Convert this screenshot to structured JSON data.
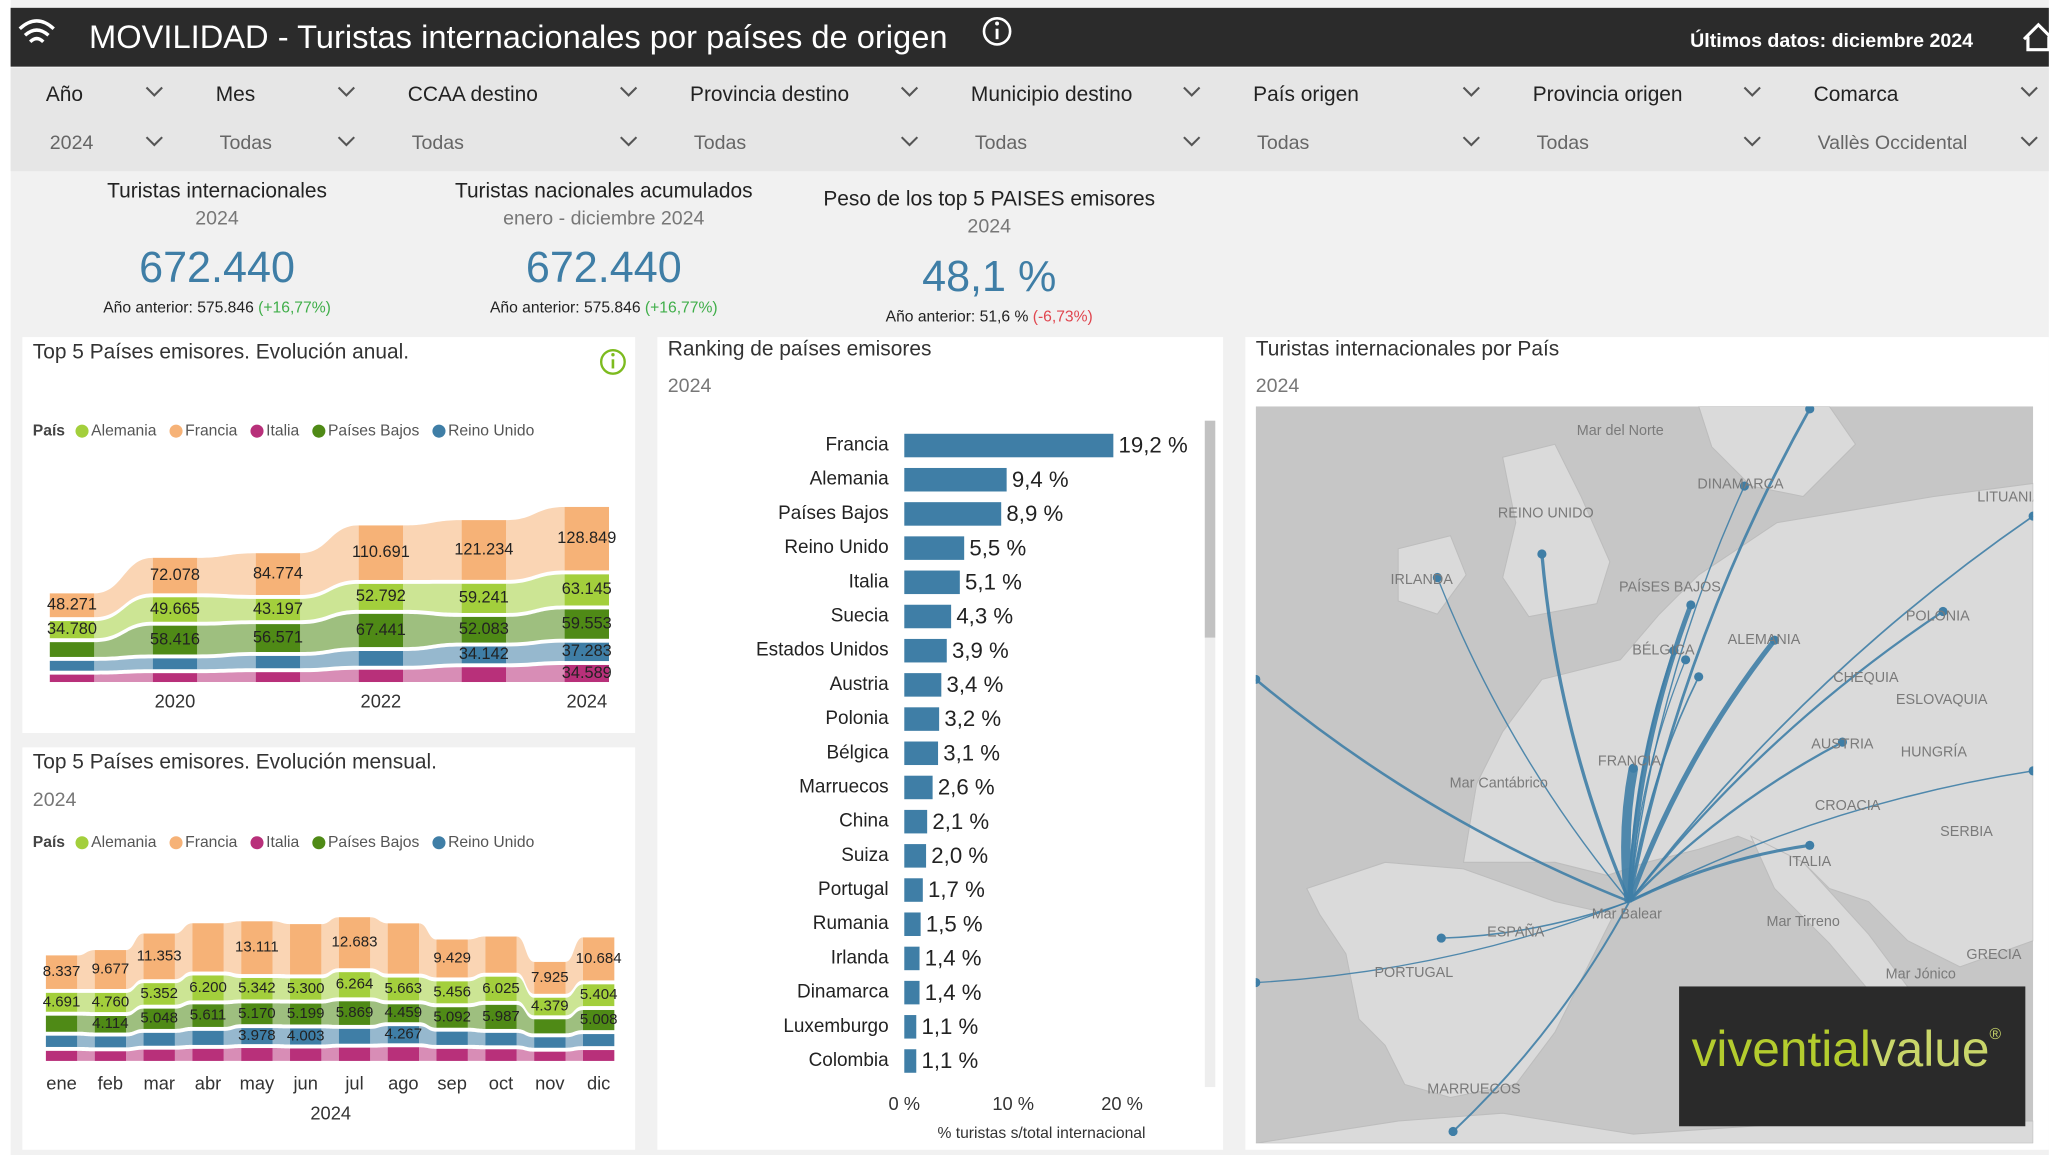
{
  "header": {
    "title": "MOVILIDAD - Turistas internacionales por países de origen",
    "last_data": "Últimos datos: diciembre 2024"
  },
  "filters": [
    {
      "label": "Año",
      "value": "2024"
    },
    {
      "label": "Mes",
      "value": "Todas"
    },
    {
      "label": "CCAA destino",
      "value": "Todas"
    },
    {
      "label": "Provincia destino",
      "value": "Todas"
    },
    {
      "label": "Municipio destino",
      "value": "Todas"
    },
    {
      "label": "País origen",
      "value": "Todas"
    },
    {
      "label": "Provincia origen",
      "value": "Todas"
    },
    {
      "label": "Comarca",
      "value": "Vallès Occidental"
    }
  ],
  "kpis": [
    {
      "title": "Turistas internacionales",
      "subtitle": "2024",
      "value": "672.440",
      "previous": "Año anterior: 575.846",
      "change": "(+16,77%)"
    },
    {
      "title": "Turistas nacionales acumulados",
      "subtitle": "enero - diciembre 2024",
      "value": "672.440",
      "previous": "Año anterior: 575.846",
      "change": "(+16,77%)"
    },
    {
      "title": "Peso de los top 5 PAISES emisores",
      "subtitle": "2024",
      "value": "48,1 %",
      "previous": "Año anterior: 51,6 %",
      "change": "(-6,73%)"
    }
  ],
  "chart_data": [
    {
      "type": "ribbon",
      "title": "Top 5 Países emisores. Evolución anual.",
      "legend_title": "País",
      "categories": [
        null,
        "2020",
        null,
        "2022",
        null,
        "2024"
      ],
      "series": [
        {
          "name": "Alemania",
          "color": "#a3cf3c",
          "values": [
            34780,
            49665,
            43197,
            52792,
            59241,
            63145
          ],
          "value_labels": [
            "34.780",
            "49.665",
            "43.197",
            "52.792",
            "59.241",
            "63.145"
          ]
        },
        {
          "name": "Francia",
          "color": "#f6b277",
          "values": [
            48271,
            72078,
            84774,
            110691,
            121234,
            128849
          ],
          "value_labels": [
            "48.271",
            "72.078",
            "84.774",
            "110.691",
            "121.234",
            "128.849"
          ]
        },
        {
          "name": "Italia",
          "color": "#b8307a",
          "values": [
            15000,
            18000,
            20000,
            25000,
            30000,
            34589
          ],
          "value_labels": [
            null,
            null,
            null,
            null,
            null,
            "34.589"
          ]
        },
        {
          "name": "Países Bajos",
          "color": "#4f8a16",
          "values": [
            30000,
            58416,
            56571,
            67441,
            52083,
            59553
          ],
          "value_labels": [
            null,
            "58.416",
            "56.571",
            "67.441",
            "52.083",
            "59.553"
          ]
        },
        {
          "name": "Reino Unido",
          "color": "#3f7ea6",
          "values": [
            20000,
            22000,
            25000,
            30000,
            34142,
            37283
          ],
          "value_labels": [
            null,
            null,
            null,
            null,
            "34.142",
            "37.283"
          ]
        }
      ]
    },
    {
      "type": "ribbon",
      "title": "Top 5 Países emisores. Evolución mensual.",
      "subtitle": "2024",
      "legend_title": "País",
      "x_label": "2024",
      "categories": [
        "ene",
        "feb",
        "mar",
        "abr",
        "may",
        "jun",
        "jul",
        "ago",
        "sep",
        "oct",
        "nov",
        "dic"
      ],
      "series": [
        {
          "name": "Alemania",
          "color": "#a3cf3c",
          "values": [
            4691,
            4760,
            5352,
            6200,
            5342,
            5300,
            6264,
            5663,
            5456,
            6025,
            4379,
            5404
          ],
          "value_labels": [
            "4.691",
            "4.760",
            "5.352",
            "6.200",
            "5.342",
            "5.300",
            "6.264",
            "5.663",
            "5.456",
            "6.025",
            "4.379",
            "5.404"
          ]
        },
        {
          "name": "Francia",
          "color": "#f6b277",
          "values": [
            8337,
            9677,
            11353,
            12000,
            13111,
            12500,
            12683,
            12500,
            9429,
            9000,
            7925,
            10684
          ],
          "value_labels": [
            "8.337",
            "9.677",
            "11.353",
            null,
            "13.111",
            null,
            "12.683",
            null,
            "9.429",
            null,
            "7.925",
            "10.684"
          ]
        },
        {
          "name": "Italia",
          "color": "#b8307a",
          "values": [
            2500,
            2400,
            2800,
            3000,
            3200,
            3100,
            3300,
            3400,
            3000,
            2900,
            2300,
            2700
          ]
        },
        {
          "name": "Países Bajos",
          "color": "#4f8a16",
          "values": [
            4000,
            4114,
            5048,
            5611,
            5170,
            5199,
            5869,
            4459,
            5092,
            5987,
            3500,
            5008
          ],
          "value_labels": [
            null,
            "4.114",
            "5.048",
            "5.611",
            "5.170",
            "5.199",
            "5.869",
            "4.459",
            "5.092",
            "5.987",
            null,
            "5.008"
          ]
        },
        {
          "name": "Reino Unido",
          "color": "#3f7ea6",
          "values": [
            2800,
            2700,
            3200,
            3500,
            3978,
            4003,
            3700,
            4267,
            3300,
            3100,
            2600,
            3000
          ],
          "value_labels": [
            null,
            null,
            null,
            null,
            "3.978",
            "4.003",
            null,
            "4.267",
            null,
            null,
            null,
            null
          ]
        }
      ]
    },
    {
      "type": "barh",
      "title": "Ranking de países emisores",
      "subtitle": "2024",
      "x_label": "% turistas s/total internacional",
      "color": "#3f7ea6",
      "categories": [
        "Francia",
        "Alemania",
        "Países Bajos",
        "Reino Unido",
        "Italia",
        "Suecia",
        "Estados Unidos",
        "Austria",
        "Polonia",
        "Bélgica",
        "Marruecos",
        "China",
        "Suiza",
        "Portugal",
        "Rumania",
        "Irlanda",
        "Dinamarca",
        "Luxemburgo",
        "Colombia"
      ],
      "values": [
        19.2,
        9.4,
        8.9,
        5.5,
        5.1,
        4.3,
        3.9,
        3.4,
        3.2,
        3.1,
        2.6,
        2.1,
        2.0,
        1.7,
        1.5,
        1.4,
        1.4,
        1.1,
        1.1
      ],
      "value_labels": [
        "19,2 %",
        "9,4 %",
        "8,9 %",
        "5,5 %",
        "5,1 %",
        "4,3 %",
        "3,9 %",
        "3,4 %",
        "3,2 %",
        "3,1 %",
        "2,6 %",
        "2,1 %",
        "2,0 %",
        "1,7 %",
        "1,5 %",
        "1,4 %",
        "1,4 %",
        "1,1 %",
        "1,1 %"
      ],
      "xlim": [
        0,
        24
      ],
      "xticks": [
        {
          "value": 0,
          "label": "0 %"
        },
        {
          "value": 10,
          "label": "10 %"
        },
        {
          "value": 20,
          "label": "20 %"
        }
      ]
    }
  ],
  "map": {
    "title": "Turistas internacionales por País",
    "subtitle": "2024",
    "labels": [
      "Mar del Norte",
      "DINAMARCA",
      "LITUANIA",
      "REINO UNIDO",
      "IRLANDA",
      "PAÍSES BAJOS",
      "BÉLGICA",
      "ALEMANIA",
      "POLONIA",
      "CHEQUIA",
      "ESLOVAQUIA",
      "AUSTRIA",
      "HUNGRÍA",
      "FRANCIA",
      "Mar Cantábrico",
      "CROACIA",
      "SERBIA",
      "ITALIA",
      "Mar Balear",
      "ESPAÑA",
      "Mar Tirreno",
      "PORTUGAL",
      "GRECIA",
      "MARRUECOS",
      "Mar Jónico"
    ]
  },
  "logo": {
    "brand": "vivential",
    "suffix": "value",
    "mark": "®"
  }
}
